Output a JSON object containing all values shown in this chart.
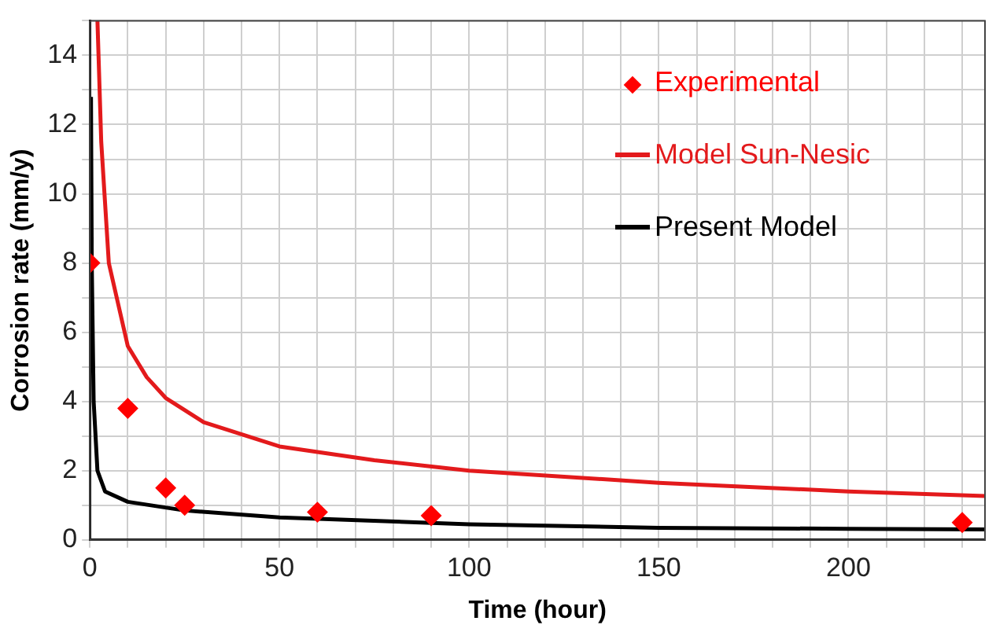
{
  "chart_data": {
    "type": "line",
    "xlabel": "Time (hour)",
    "ylabel": "Corrosion rate (mm/y)",
    "xlim": [
      0,
      236
    ],
    "xticks": [
      0,
      {
        "value": 10,
        "label": null
      },
      {
        "value": 20,
        "label": null
      },
      {
        "value": 30,
        "label": null
      },
      {
        "value": 40,
        "label": null
      },
      50,
      {
        "value": 60,
        "label": null
      },
      {
        "value": 70,
        "label": null
      },
      {
        "value": 80,
        "label": null
      },
      {
        "value": 90,
        "label": null
      },
      100,
      {
        "value": 110,
        "label": null
      },
      {
        "value": 120,
        "label": null
      },
      {
        "value": 130,
        "label": null
      },
      {
        "value": 140,
        "label": null
      },
      150,
      {
        "value": 160,
        "label": null
      },
      {
        "value": 170,
        "label": null
      },
      {
        "value": 180,
        "label": null
      },
      {
        "value": 190,
        "label": null
      },
      200,
      {
        "value": 210,
        "label": null
      },
      {
        "value": 220,
        "label": null
      },
      {
        "value": 230,
        "label": null
      }
    ],
    "ylim": [
      0,
      15
    ],
    "yticks": [
      0,
      {
        "value": 1,
        "label": null
      },
      2,
      {
        "value": 3,
        "label": null
      },
      4,
      {
        "value": 5,
        "label": null
      },
      6,
      {
        "value": 7,
        "label": null
      },
      8,
      {
        "value": 9,
        "label": null
      },
      10,
      {
        "value": 11,
        "label": null
      },
      12,
      {
        "value": 13,
        "label": null
      },
      14,
      {
        "value": 15,
        "label": null
      }
    ],
    "grid": true,
    "legend": "top right",
    "series": [
      {
        "name": "Experimental",
        "type": "scatter",
        "marker": "diamond",
        "color": "#ff0000",
        "x": [
          0,
          10,
          20,
          25,
          60,
          90,
          230
        ],
        "values": [
          8,
          3.8,
          1.5,
          1.0,
          0.8,
          0.7,
          0.5
        ]
      },
      {
        "name": "Model Sun-Nesic",
        "type": "line",
        "marker": "none",
        "color": "#e31a1c",
        "x": [
          2,
          3,
          5,
          10,
          15,
          20,
          30,
          50,
          75,
          100,
          150,
          200,
          236
        ],
        "values": [
          15,
          11.5,
          8,
          5.6,
          4.7,
          4.1,
          3.4,
          2.7,
          2.3,
          2.0,
          1.65,
          1.4,
          1.27
        ]
      },
      {
        "name": "Present Model",
        "type": "line",
        "marker": "none",
        "color": "#000000",
        "x": [
          0.3,
          0.5,
          1,
          2,
          4,
          10,
          25,
          50,
          100,
          150,
          200,
          236
        ],
        "values": [
          12.8,
          8,
          4,
          2,
          1.4,
          1.1,
          0.85,
          0.65,
          0.45,
          0.35,
          0.32,
          0.3
        ]
      }
    ]
  }
}
